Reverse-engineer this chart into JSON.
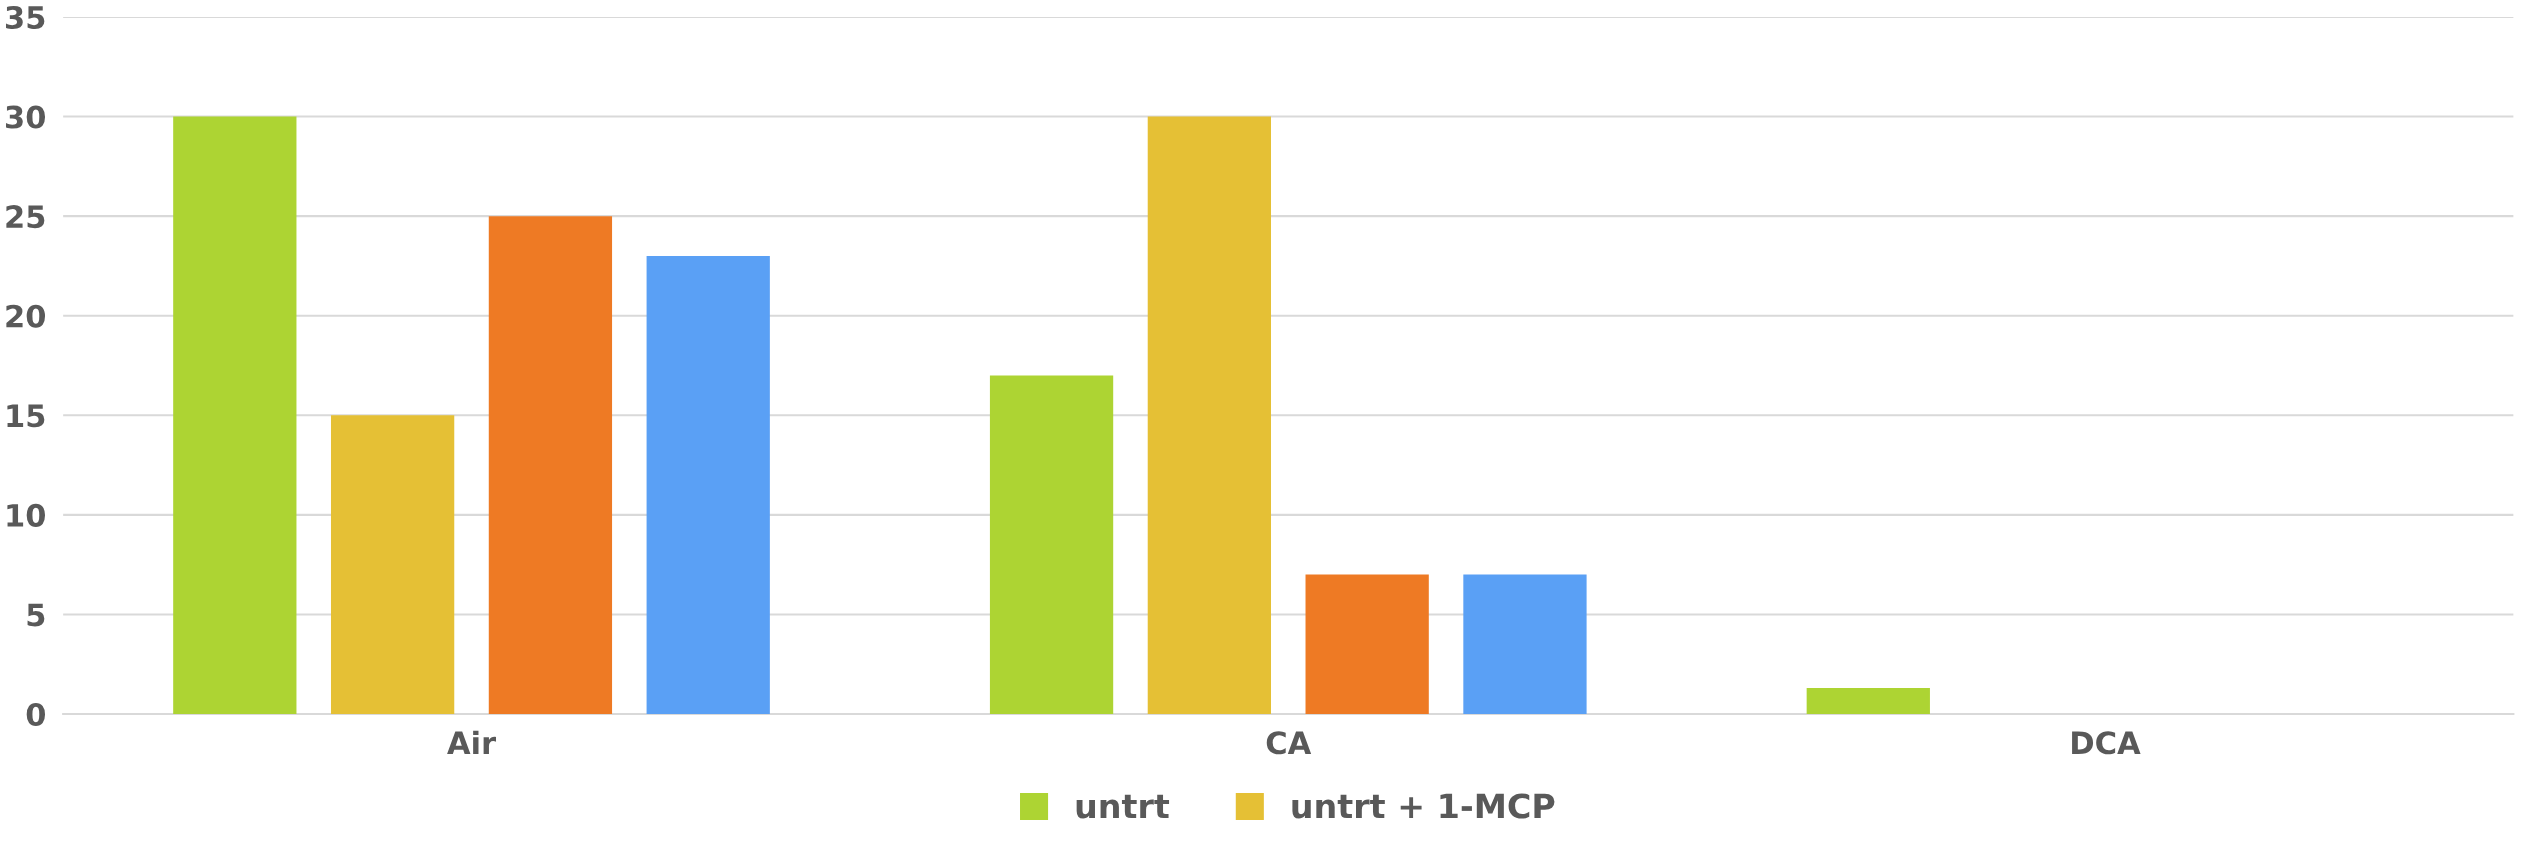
{
  "chart_data": {
    "type": "bar",
    "categories": [
      "Air",
      "CA",
      "DCA"
    ],
    "series": [
      {
        "name": "untrt",
        "color": "#add433",
        "values": [
          30,
          17,
          1.3
        ]
      },
      {
        "name": "untrt + 1-MCP",
        "color": "#e5c035",
        "values": [
          15,
          30,
          0
        ]
      },
      {
        "color": "#ee7a24",
        "values": [
          25,
          7,
          0
        ]
      },
      {
        "color": "#5aa0f5",
        "values": [
          23,
          7,
          0
        ]
      }
    ],
    "ylim": [
      0,
      35
    ],
    "yticks": [
      0,
      5,
      10,
      15,
      20,
      25,
      30,
      35
    ],
    "grid": "y",
    "legend": "bottom"
  }
}
